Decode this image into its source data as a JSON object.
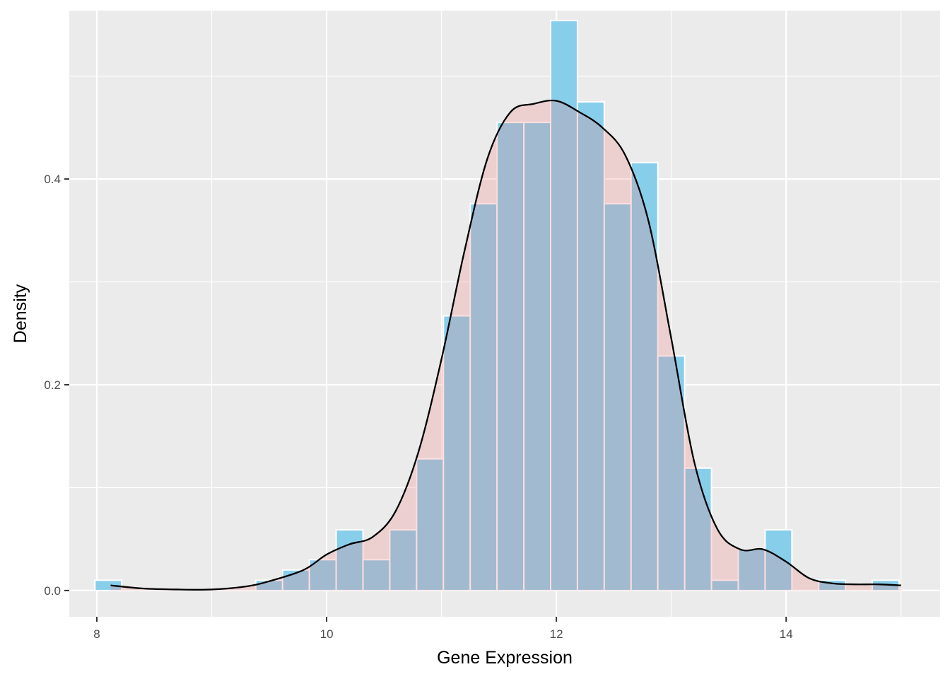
{
  "chart_data": {
    "type": "histogram",
    "title": "",
    "xlabel": "Gene Expression",
    "ylabel": "Density",
    "xlim": [
      7.76,
      15.34
    ],
    "ylim": [
      -0.0255,
      0.5637
    ],
    "x_ticks": [
      8,
      10,
      12,
      14
    ],
    "x_tick_labels": [
      "8",
      "10",
      "12",
      "14"
    ],
    "x_minor": [
      9,
      11,
      13,
      15
    ],
    "y_ticks": [
      0.0,
      0.2,
      0.4
    ],
    "y_tick_labels": [
      "0.0",
      "0.2",
      "0.4"
    ],
    "y_minor": [
      0.1,
      0.3,
      0.5
    ],
    "grid": true,
    "legend": "none",
    "bin_width": 0.2333,
    "bins": [
      {
        "x0": 7.9833,
        "x1": 8.2167,
        "density": 0.01
      },
      {
        "x0": 8.2167,
        "x1": 8.45,
        "density": 0.0
      },
      {
        "x0": 8.45,
        "x1": 8.6833,
        "density": 0.0
      },
      {
        "x0": 8.6833,
        "x1": 8.9167,
        "density": 0.0
      },
      {
        "x0": 8.9167,
        "x1": 9.15,
        "density": 0.0
      },
      {
        "x0": 9.15,
        "x1": 9.3833,
        "density": 0.0
      },
      {
        "x0": 9.3833,
        "x1": 9.6167,
        "density": 0.01
      },
      {
        "x0": 9.6167,
        "x1": 9.85,
        "density": 0.02
      },
      {
        "x0": 9.85,
        "x1": 10.0833,
        "density": 0.03
      },
      {
        "x0": 10.0833,
        "x1": 10.3167,
        "density": 0.059
      },
      {
        "x0": 10.3167,
        "x1": 10.55,
        "density": 0.03
      },
      {
        "x0": 10.55,
        "x1": 10.7833,
        "density": 0.059
      },
      {
        "x0": 10.7833,
        "x1": 11.0167,
        "density": 0.128
      },
      {
        "x0": 11.0167,
        "x1": 11.25,
        "density": 0.267
      },
      {
        "x0": 11.25,
        "x1": 11.4833,
        "density": 0.376
      },
      {
        "x0": 11.4833,
        "x1": 11.7167,
        "density": 0.455
      },
      {
        "x0": 11.7167,
        "x1": 11.95,
        "density": 0.455
      },
      {
        "x0": 11.95,
        "x1": 12.1833,
        "density": 0.554
      },
      {
        "x0": 12.1833,
        "x1": 12.4167,
        "density": 0.475
      },
      {
        "x0": 12.4167,
        "x1": 12.65,
        "density": 0.376
      },
      {
        "x0": 12.65,
        "x1": 12.8833,
        "density": 0.416
      },
      {
        "x0": 12.8833,
        "x1": 13.1167,
        "density": 0.228
      },
      {
        "x0": 13.1167,
        "x1": 13.35,
        "density": 0.119
      },
      {
        "x0": 13.35,
        "x1": 13.5833,
        "density": 0.01
      },
      {
        "x0": 13.5833,
        "x1": 13.8167,
        "density": 0.04
      },
      {
        "x0": 13.8167,
        "x1": 14.05,
        "density": 0.059
      },
      {
        "x0": 14.05,
        "x1": 14.2833,
        "density": 0.0
      },
      {
        "x0": 14.2833,
        "x1": 14.5167,
        "density": 0.01
      },
      {
        "x0": 14.5167,
        "x1": 14.75,
        "density": 0.0
      },
      {
        "x0": 14.75,
        "x1": 14.9833,
        "density": 0.01
      }
    ],
    "density_curve": {
      "x": [
        8.12,
        8.4,
        8.7,
        9.0,
        9.3,
        9.5,
        9.8,
        10.0,
        10.2,
        10.4,
        10.6,
        10.8,
        11.0,
        11.2,
        11.4,
        11.6,
        11.8,
        12.0,
        12.2,
        12.4,
        12.6,
        12.8,
        13.0,
        13.2,
        13.4,
        13.6,
        13.8,
        14.0,
        14.2,
        14.4,
        14.6,
        14.8,
        15.0
      ],
      "y": [
        0.005,
        0.002,
        0.001,
        0.001,
        0.004,
        0.009,
        0.02,
        0.035,
        0.045,
        0.052,
        0.077,
        0.135,
        0.225,
        0.33,
        0.42,
        0.465,
        0.473,
        0.476,
        0.465,
        0.45,
        0.423,
        0.36,
        0.245,
        0.125,
        0.06,
        0.04,
        0.04,
        0.028,
        0.012,
        0.007,
        0.006,
        0.006,
        0.005
      ]
    },
    "colors": {
      "panel_background": "#ebebeb",
      "grid": "#ffffff",
      "histogram_fill": "#87ceeb",
      "density_fill": "#f08080",
      "density_fill_opacity": 0.25,
      "density_line": "#000000",
      "bar_outline": "#ffffff"
    }
  }
}
